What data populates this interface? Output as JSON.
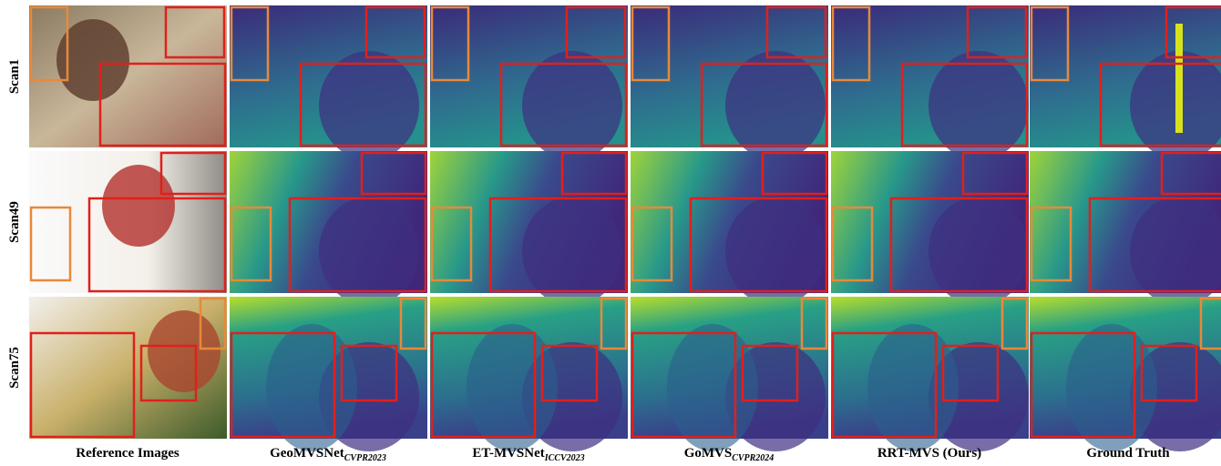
{
  "figure": {
    "rows": [
      "Scan1",
      "Scan49",
      "Scan75"
    ],
    "columns": [
      {
        "name": "Reference Images"
      },
      {
        "name": "GeoMVSNet",
        "venue": "CVPR2023"
      },
      {
        "name": "ET-MVSNet",
        "venue": "ICCV2023"
      },
      {
        "name": "GoMVS",
        "venue": "CVPR2024"
      },
      {
        "name": "RRT-MVS (Ours)"
      },
      {
        "name": "Ground Truth"
      }
    ]
  }
}
